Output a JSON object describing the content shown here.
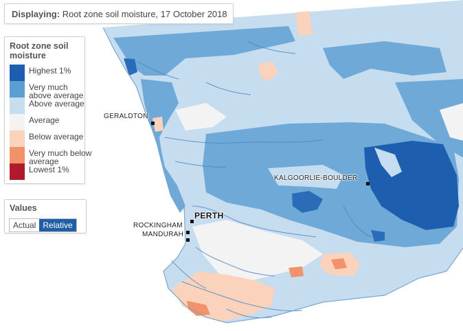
{
  "display": {
    "label": "Displaying:",
    "text": "Root zone soil moisture, 17 October 2018"
  },
  "legend": {
    "title": "Root zone soil moisture",
    "items": [
      {
        "label": "Highest 1%",
        "color": "#1d5fae"
      },
      {
        "label": "Very much above average",
        "color": "#5b9fd1"
      },
      {
        "label": "Above average",
        "color": "#c6ddf0"
      },
      {
        "label": "Average",
        "color": "#f3f3f3"
      },
      {
        "label": "Below average",
        "color": "#fbd3bc"
      },
      {
        "label": "Very much below average",
        "color": "#f2926a"
      },
      {
        "label": "Lowest 1%",
        "color": "#b01a2c"
      }
    ]
  },
  "values": {
    "title": "Values",
    "options": [
      "Actual",
      "Relative"
    ],
    "selected": "Relative"
  },
  "towns": {
    "geraldton": "GERALDTON",
    "kalgoorlie": "KALGOORLIE-BOULDER",
    "perth": "PERTH",
    "rockingham": "ROCKINGHAM",
    "mandurah": "MANDURAH"
  },
  "colors": {
    "ocean": "#ffffff",
    "river": "#4f86c0",
    "coast": "#7aa6d2"
  }
}
